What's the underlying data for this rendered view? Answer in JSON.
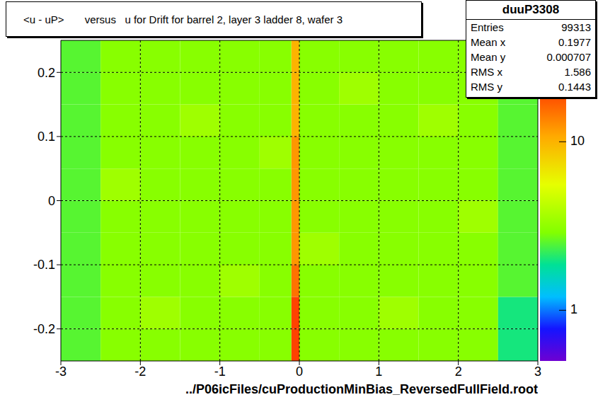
{
  "chart_data": {
    "type": "heatmap",
    "title": "<u - uP>       versus   u for Drift for barrel 2, layer 3 ladder 8, wafer 3",
    "name": "duuP3308",
    "x_label": "../P06icFiles/cuProductionMinBias_ReversedFullField.root",
    "stats": [
      {
        "label": "Entries",
        "value": 99313
      },
      {
        "label": "Mean x",
        "value": 0.1977
      },
      {
        "label": "Mean y",
        "value": 0.000707
      },
      {
        "label": "RMS x",
        "value": 1.586
      },
      {
        "label": "RMS y",
        "value": 0.1443
      }
    ],
    "xlim": [
      -3,
      3
    ],
    "ylim": [
      -0.25,
      0.25
    ],
    "xticks": [
      -3,
      -2,
      -1,
      0,
      1,
      2,
      3
    ],
    "yticks": [
      -0.2,
      -0.1,
      0,
      0.1,
      0.2
    ],
    "grid": true,
    "x_bins": [
      -3,
      -2.5,
      -2,
      -1.5,
      -1,
      -0.5,
      -0.1,
      0,
      0.5,
      1,
      1.5,
      2,
      2.5,
      3
    ],
    "y_bins": [
      -0.25,
      -0.2,
      -0.15,
      -0.1,
      -0.05,
      0,
      0.05,
      0.1,
      0.15,
      0.2,
      0.25
    ],
    "cells": [
      [
        2.5,
        3,
        3,
        3,
        3,
        3,
        20,
        3,
        3,
        3,
        3,
        3,
        2
      ],
      [
        2.5,
        3,
        3.5,
        3,
        3,
        3,
        20,
        3,
        3,
        3.5,
        3,
        3,
        2
      ],
      [
        2.5,
        3,
        3,
        3,
        3.5,
        3,
        15,
        3,
        3,
        3,
        3,
        3,
        2.5
      ],
      [
        2.5,
        3,
        3,
        3,
        3,
        3,
        12,
        3.5,
        3,
        3,
        3,
        3,
        2.5
      ],
      [
        2.5,
        3,
        3,
        3,
        3,
        3,
        12,
        3,
        3,
        3,
        3,
        3.5,
        2.5
      ],
      [
        2.5,
        3.5,
        3,
        3,
        3,
        3,
        12,
        3,
        3,
        3,
        3,
        3,
        2.5
      ],
      [
        2.5,
        3,
        3,
        3,
        3,
        3.5,
        12,
        3,
        3,
        3,
        3,
        3,
        2.5
      ],
      [
        2.5,
        3,
        3,
        3.5,
        3,
        3,
        10,
        3,
        3,
        3,
        3.5,
        3,
        2.5
      ],
      [
        2.5,
        3,
        3,
        3,
        3,
        3,
        10,
        3,
        3.5,
        3,
        3,
        3,
        2.5
      ],
      [
        2.5,
        3,
        3,
        3,
        3,
        3,
        10,
        3,
        3,
        3,
        3,
        3,
        2.5
      ]
    ],
    "color_range": [
      0.5,
      40
    ],
    "color_ticks": [
      1,
      10
    ]
  }
}
